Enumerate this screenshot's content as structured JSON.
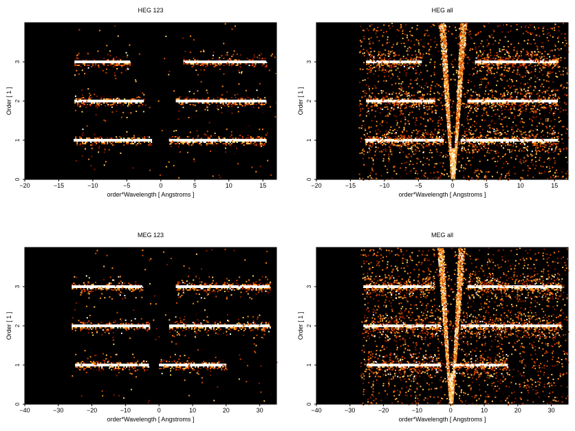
{
  "chart_data": [
    {
      "type": "heatmap",
      "title": "HEG 123",
      "xlabel": "order*Wavelength [ Angstroms ]",
      "ylabel": "Order [ 1 ]",
      "xlim": [
        -20,
        17
      ],
      "ylim": [
        0,
        4
      ],
      "xticks": [
        -20,
        -15,
        -10,
        -5,
        0,
        5,
        10,
        15
      ],
      "yticks": [
        0,
        1,
        2,
        3
      ],
      "colormap": [
        "#000000",
        "#3a0000",
        "#8b1a00",
        "#d44800",
        "#ff8c1a",
        "#ffd060",
        "#ffffff"
      ],
      "bands": [
        {
          "order": 1,
          "x_start": -12.8,
          "x_end": -1.3,
          "level": 0.95,
          "noise": 0.05
        },
        {
          "order": 1,
          "x_start": 1.2,
          "x_end": 15.5,
          "level": 0.95,
          "noise": 0.05
        },
        {
          "order": 2,
          "x_start": -12.7,
          "x_end": -2.5,
          "level": 0.85,
          "noise": 0.07
        },
        {
          "order": 2,
          "x_start": 2.2,
          "x_end": 15.5,
          "level": 0.85,
          "noise": 0.07
        },
        {
          "order": 3,
          "x_start": -12.7,
          "x_end": -4.5,
          "level": 0.75,
          "noise": 0.08
        },
        {
          "order": 3,
          "x_start": 3.3,
          "x_end": 15.5,
          "level": 0.75,
          "noise": 0.08
        }
      ],
      "include_zero_order": false
    },
    {
      "type": "heatmap",
      "title": "HEG all",
      "xlabel": "order*Wavelength [ Angstroms ]",
      "ylabel": "Order [ 1 ]",
      "xlim": [
        -20,
        17
      ],
      "ylim": [
        0,
        4
      ],
      "xticks": [
        -20,
        -15,
        -10,
        -5,
        0,
        5,
        10,
        15
      ],
      "yticks": [
        0,
        1,
        2,
        3
      ],
      "colormap": [
        "#000000",
        "#3a0000",
        "#8b1a00",
        "#d44800",
        "#ff8c1a",
        "#ffd060",
        "#ffffff"
      ],
      "bands": [
        {
          "order": 1,
          "x_start": -12.8,
          "x_end": -1.3,
          "level": 0.95,
          "noise": 0.3
        },
        {
          "order": 1,
          "x_start": 1.2,
          "x_end": 15.5,
          "level": 0.95,
          "noise": 0.3
        },
        {
          "order": 2,
          "x_start": -12.7,
          "x_end": -2.5,
          "level": 0.85,
          "noise": 0.3
        },
        {
          "order": 2,
          "x_start": 2.2,
          "x_end": 15.5,
          "level": 0.85,
          "noise": 0.3
        },
        {
          "order": 3,
          "x_start": -12.7,
          "x_end": -4.5,
          "level": 0.75,
          "noise": 0.3
        },
        {
          "order": 3,
          "x_start": 3.3,
          "x_end": 15.5,
          "level": 0.75,
          "noise": 0.3
        }
      ],
      "include_zero_order": true
    },
    {
      "type": "heatmap",
      "title": "MEG 123",
      "xlabel": "order*Wavelength [ Angstroms ]",
      "ylabel": "Order [ 1 ]",
      "xlim": [
        -40,
        35
      ],
      "ylim": [
        0,
        4
      ],
      "xticks": [
        -40,
        -30,
        -20,
        -10,
        0,
        10,
        20,
        30
      ],
      "yticks": [
        0,
        1,
        2,
        3
      ],
      "colormap": [
        "#000000",
        "#3a0000",
        "#8b1a00",
        "#d44800",
        "#ff8c1a",
        "#ffd060",
        "#ffffff"
      ],
      "bands": [
        {
          "order": 1,
          "x_start": -25,
          "x_end": -3,
          "level": 0.9,
          "noise": 0.08
        },
        {
          "order": 1,
          "x_start": 0,
          "x_end": 20,
          "level": 0.9,
          "noise": 0.08
        },
        {
          "order": 2,
          "x_start": -26,
          "x_end": -3,
          "level": 0.85,
          "noise": 0.1
        },
        {
          "order": 2,
          "x_start": 3,
          "x_end": 33,
          "level": 0.85,
          "noise": 0.12
        },
        {
          "order": 3,
          "x_start": -26,
          "x_end": -5,
          "level": 0.85,
          "noise": 0.12
        },
        {
          "order": 3,
          "x_start": 5,
          "x_end": 33,
          "level": 0.85,
          "noise": 0.15
        }
      ],
      "include_zero_order": false
    },
    {
      "type": "heatmap",
      "title": "MEG all",
      "xlabel": "order*Wavelength [ Angstroms ]",
      "ylabel": "Order [ 1 ]",
      "xlim": [
        -40,
        35
      ],
      "ylim": [
        0,
        4
      ],
      "xticks": [
        -40,
        -30,
        -20,
        -10,
        0,
        10,
        20,
        30
      ],
      "yticks": [
        0,
        1,
        2,
        3
      ],
      "colormap": [
        "#000000",
        "#3a0000",
        "#8b1a00",
        "#d44800",
        "#ff8c1a",
        "#ffd060",
        "#ffffff"
      ],
      "bands": [
        {
          "order": 1,
          "x_start": -25,
          "x_end": -3,
          "level": 0.9,
          "noise": 0.35
        },
        {
          "order": 1,
          "x_start": 0,
          "x_end": 17,
          "level": 0.9,
          "noise": 0.35
        },
        {
          "order": 2,
          "x_start": -26,
          "x_end": -3,
          "level": 0.85,
          "noise": 0.35
        },
        {
          "order": 2,
          "x_start": 3,
          "x_end": 33,
          "level": 0.85,
          "noise": 0.35
        },
        {
          "order": 3,
          "x_start": -26,
          "x_end": -5,
          "level": 0.85,
          "noise": 0.35
        },
        {
          "order": 3,
          "x_start": 5,
          "x_end": 33,
          "level": 0.85,
          "noise": 0.35
        }
      ],
      "include_zero_order": true
    }
  ]
}
